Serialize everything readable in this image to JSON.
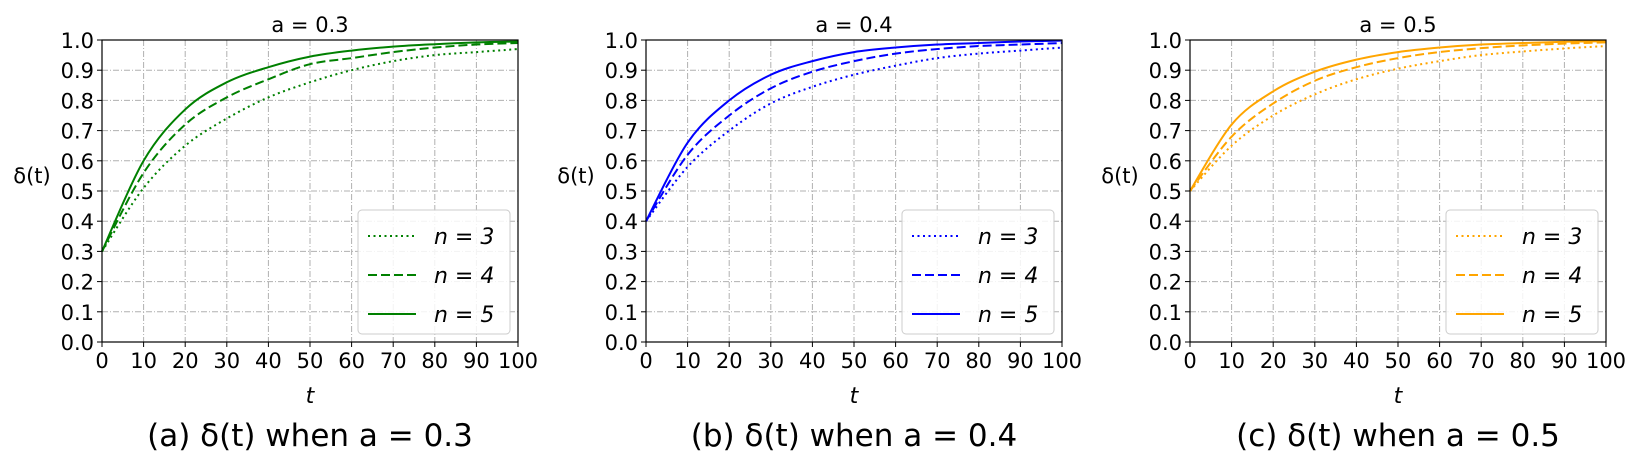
{
  "chart_data": [
    {
      "type": "line",
      "title": "a = 0.3",
      "xlabel": "t",
      "ylabel": "δ(t)",
      "caption": "(a) δ(t) when a = 0.3",
      "xlim": [
        0,
        100
      ],
      "ylim": [
        0.0,
        1.0
      ],
      "xticks": [
        "0",
        "10",
        "20",
        "30",
        "40",
        "50",
        "60",
        "70",
        "80",
        "90",
        "100"
      ],
      "yticks": [
        "0.0",
        "0.1",
        "0.2",
        "0.3",
        "0.4",
        "0.5",
        "0.6",
        "0.7",
        "0.8",
        "0.9",
        "1.0"
      ],
      "grid": true,
      "legend_position": "lower right",
      "color": "#008000",
      "x": [
        0,
        10,
        20,
        30,
        40,
        50,
        60,
        70,
        80,
        90,
        100
      ],
      "series": [
        {
          "name": "n = 3",
          "style": "dotted",
          "values": [
            0.3,
            0.51,
            0.65,
            0.74,
            0.81,
            0.86,
            0.9,
            0.93,
            0.95,
            0.96,
            0.97
          ]
        },
        {
          "name": "n = 4",
          "style": "dashed",
          "values": [
            0.3,
            0.56,
            0.72,
            0.81,
            0.87,
            0.92,
            0.94,
            0.96,
            0.975,
            0.985,
            0.99
          ]
        },
        {
          "name": "n = 5",
          "style": "solid",
          "values": [
            0.3,
            0.6,
            0.77,
            0.86,
            0.91,
            0.945,
            0.965,
            0.978,
            0.986,
            0.992,
            0.995
          ]
        }
      ]
    },
    {
      "type": "line",
      "title": "a = 0.4",
      "xlabel": "t",
      "ylabel": "δ(t)",
      "caption": "(b) δ(t) when a = 0.4",
      "xlim": [
        0,
        100
      ],
      "ylim": [
        0.0,
        1.0
      ],
      "xticks": [
        "0",
        "10",
        "20",
        "30",
        "40",
        "50",
        "60",
        "70",
        "80",
        "90",
        "100"
      ],
      "yticks": [
        "0.0",
        "0.1",
        "0.2",
        "0.3",
        "0.4",
        "0.5",
        "0.6",
        "0.7",
        "0.8",
        "0.9",
        "1.0"
      ],
      "grid": true,
      "legend_position": "lower right",
      "color": "#0000ff",
      "x": [
        0,
        10,
        20,
        30,
        40,
        50,
        60,
        70,
        80,
        90,
        100
      ],
      "series": [
        {
          "name": "n = 3",
          "style": "dotted",
          "values": [
            0.4,
            0.58,
            0.7,
            0.79,
            0.845,
            0.885,
            0.915,
            0.94,
            0.955,
            0.965,
            0.975
          ]
        },
        {
          "name": "n = 4",
          "style": "dashed",
          "values": [
            0.4,
            0.62,
            0.75,
            0.84,
            0.895,
            0.93,
            0.955,
            0.97,
            0.98,
            0.985,
            0.99
          ]
        },
        {
          "name": "n = 5",
          "style": "solid",
          "values": [
            0.4,
            0.66,
            0.8,
            0.885,
            0.93,
            0.96,
            0.975,
            0.985,
            0.99,
            0.995,
            0.998
          ]
        }
      ]
    },
    {
      "type": "line",
      "title": "a = 0.5",
      "xlabel": "t",
      "ylabel": "δ(t)",
      "caption": "(c) δ(t) when a = 0.5",
      "xlim": [
        0,
        100
      ],
      "ylim": [
        0.0,
        1.0
      ],
      "xticks": [
        "0",
        "10",
        "20",
        "30",
        "40",
        "50",
        "60",
        "70",
        "80",
        "90",
        "100"
      ],
      "yticks": [
        "0.0",
        "0.1",
        "0.2",
        "0.3",
        "0.4",
        "0.5",
        "0.6",
        "0.7",
        "0.8",
        "0.9",
        "1.0"
      ],
      "grid": true,
      "legend_position": "lower right",
      "color": "#ffa500",
      "x": [
        0,
        10,
        20,
        30,
        40,
        50,
        60,
        70,
        80,
        90,
        100
      ],
      "series": [
        {
          "name": "n = 3",
          "style": "dotted",
          "values": [
            0.5,
            0.65,
            0.75,
            0.82,
            0.87,
            0.905,
            0.93,
            0.95,
            0.962,
            0.972,
            0.98
          ]
        },
        {
          "name": "n = 4",
          "style": "dashed",
          "values": [
            0.5,
            0.68,
            0.79,
            0.865,
            0.91,
            0.94,
            0.96,
            0.973,
            0.982,
            0.988,
            0.992
          ]
        },
        {
          "name": "n = 5",
          "style": "solid",
          "values": [
            0.5,
            0.72,
            0.83,
            0.895,
            0.935,
            0.96,
            0.975,
            0.985,
            0.99,
            0.994,
            0.996
          ]
        }
      ]
    }
  ]
}
